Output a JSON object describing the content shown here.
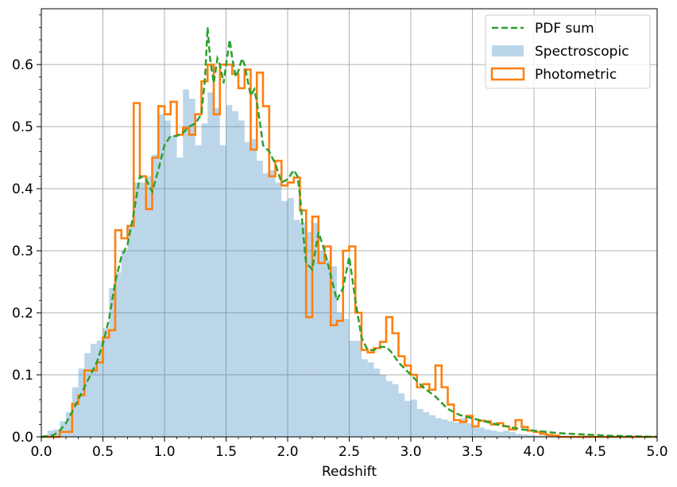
{
  "chart_data": {
    "type": "bar",
    "title": "",
    "xlabel": "Redshift",
    "ylabel": "",
    "xlim": [
      0,
      5.0
    ],
    "ylim": [
      0,
      0.69
    ],
    "grid": true,
    "legend_position": "top-right",
    "x_ticks": [
      "0.0",
      "0.5",
      "1.0",
      "1.5",
      "2.0",
      "2.5",
      "3.0",
      "3.5",
      "4.0",
      "4.5",
      "5.0"
    ],
    "y_ticks": [
      "0.0",
      "0.1",
      "0.2",
      "0.3",
      "0.4",
      "0.5",
      "0.6"
    ],
    "x_tick_values": [
      0.0,
      0.5,
      1.0,
      1.5,
      2.0,
      2.5,
      3.0,
      3.5,
      4.0,
      4.5,
      5.0
    ],
    "y_tick_values": [
      0.0,
      0.1,
      0.2,
      0.3,
      0.4,
      0.5,
      0.6
    ],
    "colors": {
      "pdf": "#2ca02c",
      "spectroscopic": "#1f77b4",
      "photometric": "#ff7f0e"
    },
    "series": [
      {
        "name": "PDF sum",
        "kind": "line",
        "x": [
          0.0,
          0.1,
          0.15,
          0.2,
          0.25,
          0.3,
          0.35,
          0.4,
          0.45,
          0.5,
          0.55,
          0.6,
          0.65,
          0.7,
          0.75,
          0.8,
          0.85,
          0.9,
          0.95,
          1.0,
          1.05,
          1.1,
          1.15,
          1.2,
          1.25,
          1.3,
          1.33,
          1.35,
          1.37,
          1.4,
          1.43,
          1.45,
          1.48,
          1.5,
          1.53,
          1.55,
          1.58,
          1.6,
          1.63,
          1.65,
          1.68,
          1.7,
          1.73,
          1.75,
          1.78,
          1.8,
          1.85,
          1.9,
          1.95,
          2.0,
          2.05,
          2.08,
          2.1,
          2.13,
          2.15,
          2.2,
          2.25,
          2.3,
          2.35,
          2.4,
          2.45,
          2.5,
          2.55,
          2.6,
          2.65,
          2.7,
          2.75,
          2.8,
          2.85,
          2.9,
          2.95,
          3.0,
          3.1,
          3.2,
          3.3,
          3.4,
          3.5,
          3.6,
          3.7,
          3.8,
          3.9,
          4.0,
          4.2,
          4.4,
          4.6,
          4.8,
          5.0
        ],
        "y": [
          0.0,
          0.003,
          0.01,
          0.022,
          0.04,
          0.06,
          0.08,
          0.1,
          0.12,
          0.15,
          0.19,
          0.25,
          0.29,
          0.31,
          0.36,
          0.42,
          0.415,
          0.395,
          0.43,
          0.47,
          0.485,
          0.485,
          0.49,
          0.5,
          0.505,
          0.52,
          0.58,
          0.66,
          0.61,
          0.57,
          0.61,
          0.6,
          0.57,
          0.6,
          0.64,
          0.61,
          0.58,
          0.59,
          0.61,
          0.6,
          0.57,
          0.55,
          0.56,
          0.54,
          0.5,
          0.47,
          0.46,
          0.44,
          0.41,
          0.415,
          0.43,
          0.42,
          0.39,
          0.32,
          0.28,
          0.27,
          0.33,
          0.3,
          0.26,
          0.22,
          0.24,
          0.29,
          0.22,
          0.16,
          0.14,
          0.14,
          0.145,
          0.145,
          0.135,
          0.12,
          0.11,
          0.1,
          0.08,
          0.065,
          0.045,
          0.035,
          0.03,
          0.025,
          0.02,
          0.016,
          0.012,
          0.01,
          0.006,
          0.004,
          0.002,
          0.001,
          0.0
        ]
      },
      {
        "name": "Spectroscopic",
        "kind": "bar",
        "bin_start": 0.05,
        "bin_width": 0.05,
        "values": [
          0.01,
          0.012,
          0.025,
          0.04,
          0.08,
          0.11,
          0.135,
          0.15,
          0.155,
          0.175,
          0.24,
          0.265,
          0.3,
          0.34,
          0.41,
          0.41,
          0.42,
          0.455,
          0.52,
          0.51,
          0.485,
          0.45,
          0.56,
          0.545,
          0.47,
          0.505,
          0.555,
          0.53,
          0.47,
          0.535,
          0.525,
          0.51,
          0.475,
          0.48,
          0.445,
          0.425,
          0.43,
          0.41,
          0.38,
          0.385,
          0.35,
          0.345,
          0.33,
          0.345,
          0.3,
          0.285,
          0.275,
          0.2,
          0.19,
          0.155,
          0.155,
          0.125,
          0.12,
          0.11,
          0.1,
          0.09,
          0.085,
          0.07,
          0.058,
          0.06,
          0.045,
          0.04,
          0.035,
          0.03,
          0.028,
          0.025,
          0.023,
          0.03,
          0.022,
          0.018,
          0.015,
          0.012,
          0.01,
          0.008,
          0.01,
          0.008,
          0.005,
          0.004,
          0.003,
          0.002,
          0.002,
          0.002,
          0.002,
          0.001,
          0.001,
          0.001,
          0.001,
          0.003,
          0.001,
          0.001,
          0.001,
          0.001,
          0.001,
          0.001,
          0.001,
          0.0,
          0.0,
          0.0,
          0.0
        ]
      },
      {
        "name": "Photometric",
        "kind": "step",
        "edges": [
          0.0,
          0.15,
          0.25,
          0.3,
          0.35,
          0.4,
          0.45,
          0.5,
          0.55,
          0.6,
          0.65,
          0.7,
          0.75,
          0.8,
          0.85,
          0.9,
          0.95,
          1.0,
          1.05,
          1.1,
          1.15,
          1.2,
          1.25,
          1.3,
          1.35,
          1.4,
          1.45,
          1.5,
          1.55,
          1.6,
          1.65,
          1.7,
          1.75,
          1.8,
          1.85,
          1.9,
          1.95,
          2.0,
          2.05,
          2.1,
          2.15,
          2.2,
          2.25,
          2.3,
          2.35,
          2.4,
          2.45,
          2.5,
          2.55,
          2.6,
          2.65,
          2.7,
          2.75,
          2.8,
          2.85,
          2.9,
          2.95,
          3.0,
          3.05,
          3.1,
          3.15,
          3.2,
          3.25,
          3.3,
          3.35,
          3.4,
          3.45,
          3.5,
          3.55,
          3.6,
          3.65,
          3.7,
          3.75,
          3.8,
          3.85,
          3.9,
          3.95,
          4.0,
          4.05,
          4.1,
          4.15,
          4.2,
          4.3,
          4.4,
          4.5,
          4.6,
          4.7,
          4.8,
          4.9,
          5.0
        ],
        "values": [
          0.0,
          0.008,
          0.053,
          0.067,
          0.107,
          0.107,
          0.12,
          0.16,
          0.172,
          0.333,
          0.32,
          0.34,
          0.538,
          0.42,
          0.367,
          0.45,
          0.533,
          0.52,
          0.54,
          0.487,
          0.498,
          0.487,
          0.52,
          0.573,
          0.6,
          0.52,
          0.6,
          0.6,
          0.585,
          0.562,
          0.592,
          0.463,
          0.587,
          0.533,
          0.42,
          0.445,
          0.405,
          0.41,
          0.418,
          0.365,
          0.193,
          0.355,
          0.28,
          0.307,
          0.18,
          0.187,
          0.3,
          0.307,
          0.2,
          0.14,
          0.136,
          0.143,
          0.153,
          0.193,
          0.167,
          0.13,
          0.115,
          0.1,
          0.08,
          0.085,
          0.076,
          0.115,
          0.08,
          0.052,
          0.027,
          0.024,
          0.034,
          0.017,
          0.026,
          0.025,
          0.02,
          0.022,
          0.017,
          0.012,
          0.027,
          0.016,
          0.01,
          0.008,
          0.005,
          0.003,
          0.002,
          0.0,
          0.0,
          0.0,
          0.0,
          0.0,
          0.0,
          0.0,
          0.0
        ]
      }
    ],
    "legend": [
      "PDF sum",
      "Spectroscopic",
      "Photometric"
    ]
  }
}
